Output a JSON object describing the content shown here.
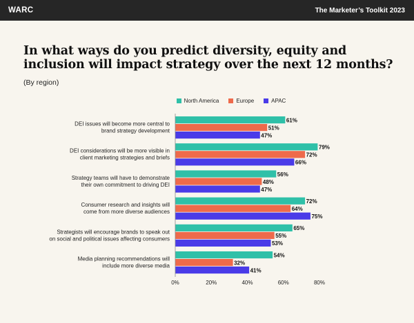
{
  "header": {
    "brand": "WARC",
    "toolkit": "The Marketer’s Toolkit 2023",
    "background_color": "#262626"
  },
  "chart_data": {
    "type": "bar",
    "orientation": "horizontal",
    "title": "In what ways do you predict diversity, equity and inclusion will impact strategy over the next 12 months?",
    "subtitle": "(By region)",
    "categories": [
      [
        "DEI issues will become more central to",
        "brand strategy development"
      ],
      [
        "DEI considerations will be more visible in",
        "client marketing strategies and briefs"
      ],
      [
        "Strategy teams will have to demonstrate",
        "their own commitment to driving DEI"
      ],
      [
        "Consumer research and insights will",
        "come from more diverse audiences"
      ],
      [
        "Strategists will encourage brands to speak out",
        "on social and political issues affecting consumers"
      ],
      [
        "Media planning recommendations will",
        "include more diverse media"
      ]
    ],
    "series": [
      {
        "name": "North America",
        "color": "#2fc0a8",
        "values": [
          61,
          79,
          56,
          72,
          65,
          54
        ]
      },
      {
        "name": "Europe",
        "color": "#ee6a4b",
        "values": [
          51,
          72,
          48,
          64,
          55,
          32
        ]
      },
      {
        "name": "APAC",
        "color": "#4a3be8",
        "values": [
          47,
          66,
          47,
          75,
          53,
          41
        ]
      }
    ],
    "value_suffix": "%",
    "xlim": [
      0,
      80
    ],
    "xticks": [
      "0%",
      "20%",
      "40%",
      "60%",
      "80%"
    ],
    "legend_position": "top-center",
    "grid": false
  }
}
